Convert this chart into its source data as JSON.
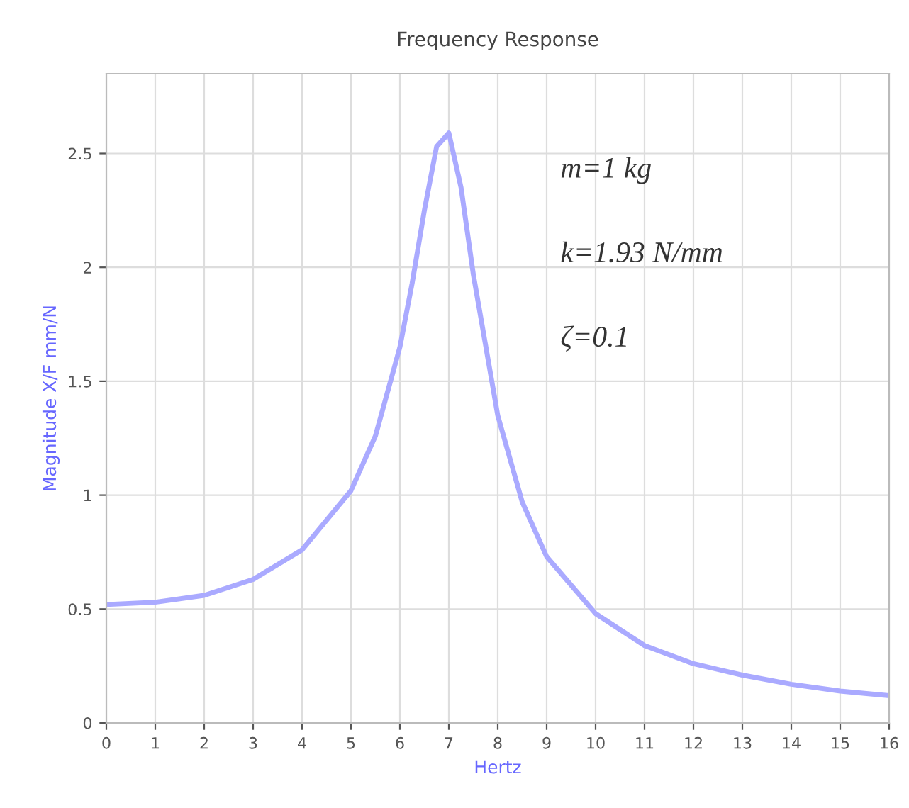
{
  "chart_data": {
    "type": "line",
    "title": "Frequency Response",
    "xlabel": "Hertz",
    "ylabel": "Magnitude X/F mm/N",
    "x": [
      0,
      1,
      2,
      3,
      4,
      5,
      5.5,
      6,
      6.25,
      6.5,
      6.75,
      7,
      7.25,
      7.5,
      8,
      8.5,
      9,
      10,
      11,
      12,
      13,
      14,
      15,
      16
    ],
    "series": [
      {
        "color": "#aaaaff",
        "values": [
          0.52,
          0.53,
          0.56,
          0.63,
          0.76,
          1.02,
          1.26,
          1.65,
          1.93,
          2.25,
          2.53,
          2.59,
          2.35,
          1.97,
          1.35,
          0.97,
          0.73,
          0.48,
          0.34,
          0.26,
          0.21,
          0.17,
          0.14,
          0.12
        ]
      }
    ],
    "xlim": [
      0,
      16
    ],
    "ylim": [
      0,
      2.85
    ],
    "xticks": [
      0,
      1,
      2,
      3,
      4,
      5,
      6,
      7,
      8,
      9,
      10,
      11,
      12,
      13,
      14,
      15,
      16
    ],
    "yticks": [
      0,
      0.5,
      1,
      1.5,
      2,
      2.5
    ],
    "grid": true,
    "marker": "none",
    "line_style": "solid",
    "annotations": [
      "m=1 kg",
      "k=1.93 N/mm",
      "ζ=0.1"
    ]
  }
}
